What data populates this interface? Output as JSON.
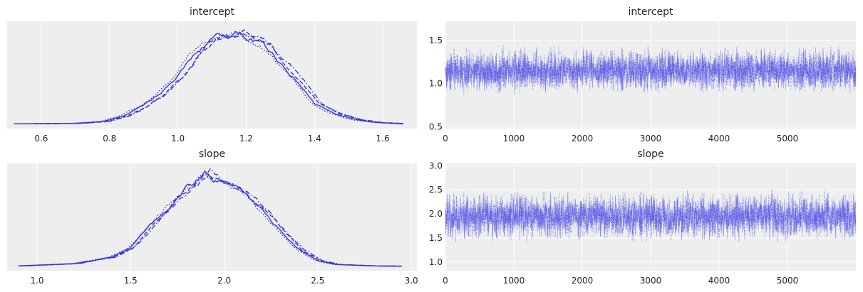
{
  "chart_data": [
    {
      "type": "line",
      "panel": "density",
      "title": "intercept",
      "xlabel": "",
      "ylabel": "",
      "x_ticks": [
        "0.6",
        "0.8",
        "1.0",
        "1.2",
        "1.4",
        "1.6"
      ],
      "xlim": [
        0.5,
        1.7
      ],
      "ylim": [
        0,
        1
      ],
      "grid": true,
      "series_style": [
        "solid",
        "dashed",
        "dotted",
        "dashdot"
      ],
      "series_shift": [
        0.0,
        0.012,
        -0.01,
        0.02
      ],
      "x": [
        0.52,
        0.7,
        0.78,
        0.84,
        0.9,
        0.95,
        1.0,
        1.04,
        1.08,
        1.12,
        1.15,
        1.18,
        1.21,
        1.25,
        1.3,
        1.35,
        1.4,
        1.46,
        1.52,
        1.58,
        1.66
      ],
      "y": [
        0.005,
        0.01,
        0.03,
        0.09,
        0.2,
        0.33,
        0.5,
        0.7,
        0.85,
        0.93,
        0.94,
        0.98,
        0.9,
        0.85,
        0.66,
        0.45,
        0.22,
        0.11,
        0.05,
        0.02,
        0.005
      ],
      "color": "#3535d8"
    },
    {
      "type": "line",
      "panel": "trace",
      "title": "intercept",
      "xlabel": "",
      "ylabel": "",
      "x_ticks": [
        "0",
        "1000",
        "2000",
        "3000",
        "4000",
        "5000"
      ],
      "y_ticks": [
        "0.5",
        "1.0",
        "1.5"
      ],
      "xlim": [
        0,
        6000
      ],
      "ylim": [
        0.48,
        1.72
      ],
      "grid": true,
      "center": 1.15,
      "spread": 0.13,
      "color": "#4a4ae8"
    },
    {
      "type": "line",
      "panel": "density",
      "title": "slope",
      "xlabel": "",
      "ylabel": "",
      "x_ticks": [
        "1.0",
        "1.5",
        "2.0",
        "2.5",
        "3.0"
      ],
      "xlim": [
        0.84,
        3.03
      ],
      "ylim": [
        0,
        1
      ],
      "grid": true,
      "series_style": [
        "solid",
        "dashed",
        "dotted",
        "dashdot"
      ],
      "series_shift": [
        0.0,
        0.015,
        -0.012,
        0.025
      ],
      "x": [
        0.9,
        1.2,
        1.4,
        1.5,
        1.6,
        1.7,
        1.8,
        1.86,
        1.9,
        1.95,
        2.0,
        2.1,
        2.2,
        2.3,
        2.4,
        2.5,
        2.6,
        2.8,
        2.95
      ],
      "y": [
        0.005,
        0.03,
        0.1,
        0.2,
        0.42,
        0.62,
        0.83,
        0.92,
        0.99,
        0.9,
        0.86,
        0.78,
        0.6,
        0.38,
        0.18,
        0.06,
        0.02,
        0.005,
        0.003
      ],
      "color": "#3535d8"
    },
    {
      "type": "line",
      "panel": "trace",
      "title": "slope",
      "xlabel": "",
      "ylabel": "",
      "x_ticks": [
        "0",
        "1000",
        "2000",
        "3000",
        "4000",
        "5000"
      ],
      "y_ticks": [
        "1.0",
        "1.5",
        "2.0",
        "2.5",
        "3.0"
      ],
      "xlim": [
        0,
        6000
      ],
      "ylim": [
        0.82,
        3.05
      ],
      "grid": true,
      "center": 1.95,
      "spread": 0.25,
      "color": "#4a4ae8"
    }
  ]
}
